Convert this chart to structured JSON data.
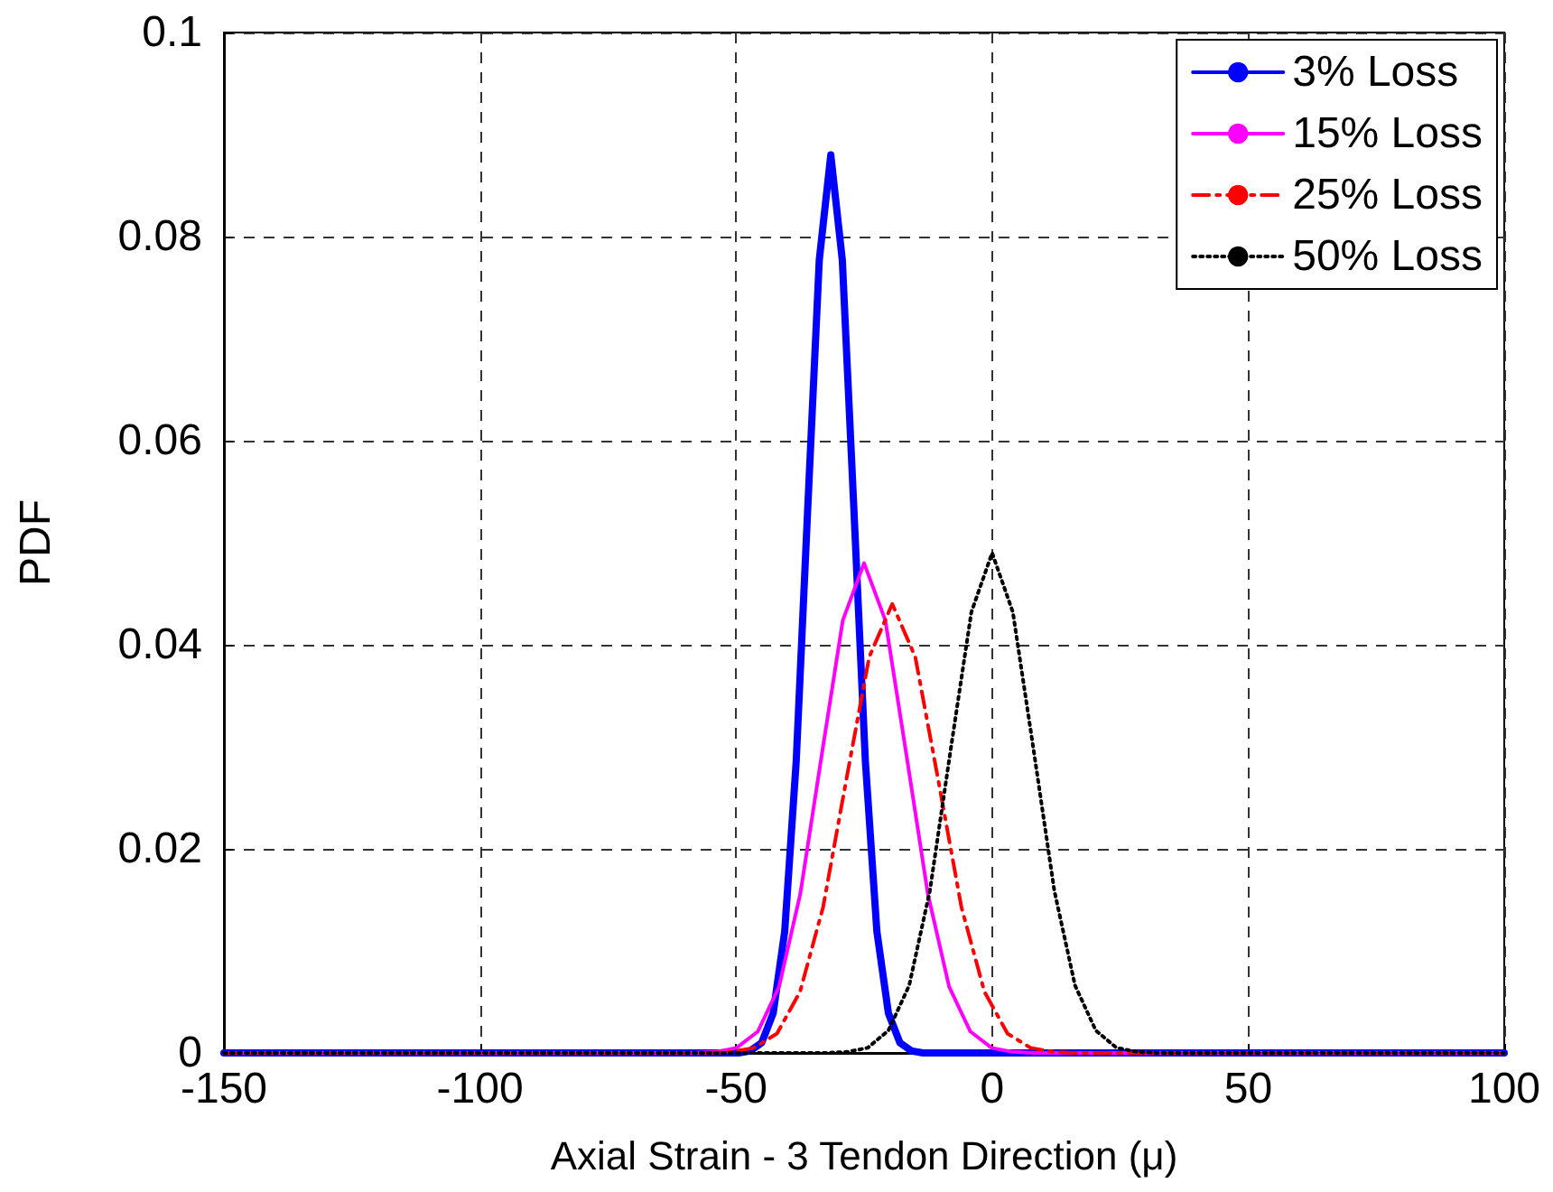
{
  "chart_data": {
    "type": "line",
    "xlabel": "Axial Strain - 3 Tendon Direction (μ)",
    "ylabel": "PDF",
    "xlim": [
      -150,
      100
    ],
    "xticks": [
      -150,
      -100,
      -50,
      0,
      50,
      100
    ],
    "ylim": [
      0,
      0.1
    ],
    "yticks": [
      0,
      0.02,
      0.04,
      0.06,
      0.08,
      0.1
    ],
    "grid": true,
    "legend": "top right",
    "marker": "none",
    "series": [
      {
        "name": "3% Loss",
        "color": "#0000ff",
        "line_style": "solid",
        "x": [
          -150,
          -60,
          -49.5,
          -47.25,
          -45,
          -42.75,
          -40.5,
          -38.25,
          -36,
          -33.75,
          -31.5,
          -29.25,
          -27,
          -24.75,
          -22.5,
          -20.25,
          -18,
          -15.75,
          -13.5,
          100
        ],
        "values": [
          0,
          0,
          0,
          0.0002,
          0.001,
          0.0039,
          0.0119,
          0.0286,
          0.0534,
          0.0777,
          0.088,
          0.0777,
          0.0534,
          0.0286,
          0.0119,
          0.0039,
          0.001,
          0.0002,
          0,
          0
        ]
      },
      {
        "name": "15% Loss",
        "color": "#ff00ff",
        "line_style": "solid",
        "x": [
          -150,
          -70,
          -58.2,
          -54.05,
          -49.9,
          -45.75,
          -41.6,
          -37.45,
          -33.3,
          -29.15,
          -25,
          -20.85,
          -16.7,
          -12.55,
          -8.4,
          -4.25,
          -0.1,
          4.05,
          8.2,
          100
        ],
        "values": [
          0,
          0,
          0,
          0.0001,
          0.0005,
          0.0021,
          0.0065,
          0.0156,
          0.0291,
          0.0424,
          0.048,
          0.0424,
          0.0291,
          0.0156,
          0.0065,
          0.0021,
          0.0005,
          0.0001,
          0,
          0
        ]
      },
      {
        "name": "25% Loss",
        "color": "#ff0000",
        "line_style": "dashed",
        "x": [
          -150,
          -70,
          -55.5,
          -51,
          -46.5,
          -42,
          -37.5,
          -33,
          -28.5,
          -24,
          -19.5,
          -15,
          -10.5,
          -6,
          -1.5,
          3,
          7.5,
          12,
          16.5,
          100
        ],
        "values": [
          0,
          0,
          0,
          0.0001,
          0.0005,
          0.0019,
          0.006,
          0.0143,
          0.0267,
          0.0388,
          0.044,
          0.0388,
          0.0267,
          0.0143,
          0.006,
          0.0019,
          0.0005,
          0.0001,
          0,
          0
        ]
      },
      {
        "name": "50% Loss",
        "color": "#000000",
        "line_style": "dotted",
        "x": [
          -150,
          -40,
          -32.4,
          -28.35,
          -24.3,
          -20.25,
          -16.2,
          -12.15,
          -8.1,
          -4.05,
          0,
          4.05,
          8.1,
          12.15,
          16.2,
          20.25,
          24.3,
          28.35,
          32.4,
          100
        ],
        "values": [
          0,
          0,
          0,
          0.0001,
          0.0005,
          0.0022,
          0.0066,
          0.0159,
          0.0297,
          0.0432,
          0.049,
          0.0432,
          0.0297,
          0.0159,
          0.0066,
          0.0022,
          0.0005,
          0.0001,
          0,
          0
        ]
      }
    ]
  }
}
